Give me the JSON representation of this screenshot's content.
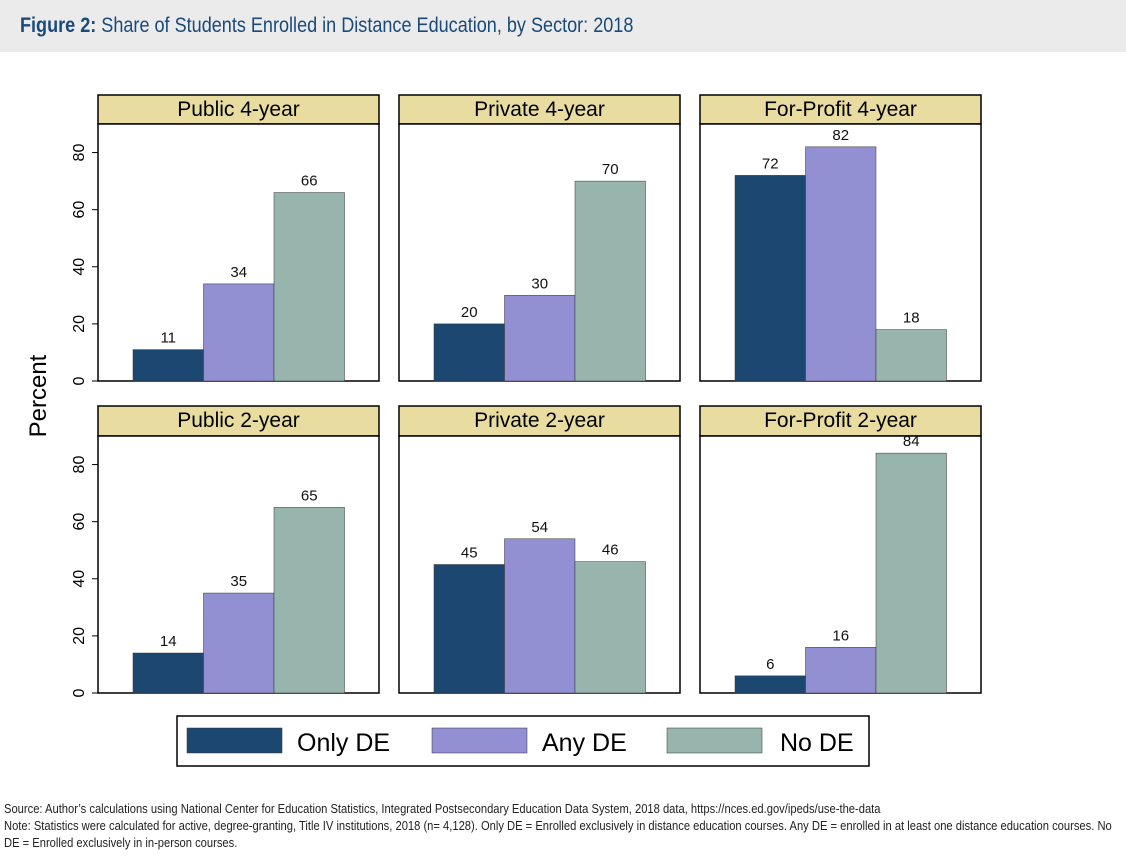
{
  "figure": {
    "label": "Figure 2:",
    "title": "Share of Students Enrolled in Distance Education, by Sector: 2018"
  },
  "footer": {
    "source": "Source: Author’s calculations using National Center for Education Statistics, Integrated Postsecondary Education Data System, 2018 data, https://nces.ed.gov/ipeds/use-the-data",
    "note": "Note: Statistics were calculated for active, degree-granting, Title IV institutions, 2018 (n= 4,128). Only DE = Enrolled exclusively in distance education courses. Any DE = enrolled in at least one distance education courses. No DE = Enrolled exclusively in in-person courses."
  },
  "colors": {
    "only_de": "#1c4771",
    "any_de": "#938fd3",
    "no_de": "#97b5ad",
    "panel_header": "#e8dca0"
  },
  "chart_data": {
    "type": "bar",
    "ylabel": "Percent",
    "ylim": [
      0,
      90
    ],
    "yticks": [
      0,
      20,
      40,
      60,
      80
    ],
    "grid": false,
    "legend_position": "bottom",
    "series": [
      {
        "name": "Only DE"
      },
      {
        "name": "Any DE"
      },
      {
        "name": "No DE"
      }
    ],
    "panels": [
      {
        "title": "Public 4-year",
        "values": [
          11,
          34,
          66
        ]
      },
      {
        "title": "Private 4-year",
        "values": [
          20,
          30,
          70
        ]
      },
      {
        "title": "For-Profit 4-year",
        "values": [
          72,
          82,
          18
        ]
      },
      {
        "title": "Public 2-year",
        "values": [
          14,
          35,
          65
        ]
      },
      {
        "title": "Private 2-year",
        "values": [
          45,
          54,
          46
        ]
      },
      {
        "title": "For-Profit 2-year",
        "values": [
          6,
          16,
          84
        ]
      }
    ]
  }
}
